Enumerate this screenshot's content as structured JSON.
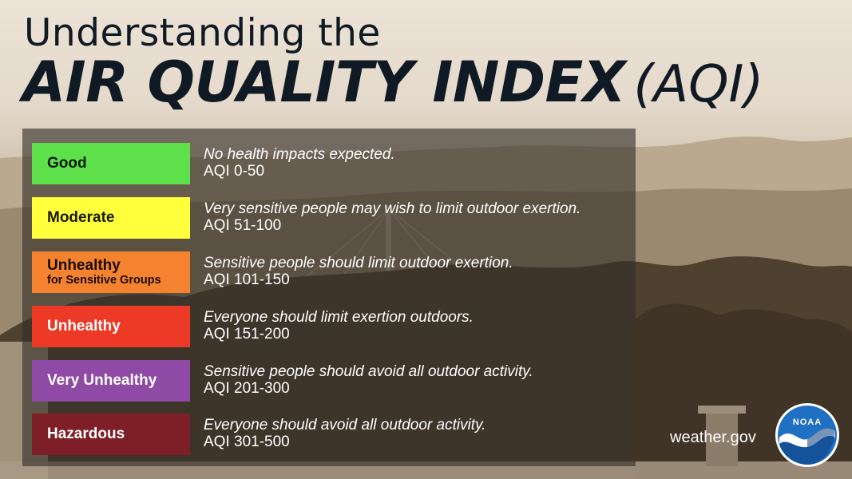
{
  "title": {
    "line1": "Understanding the",
    "main": "AIR QUALITY INDEX",
    "abbr": "(AQI)"
  },
  "categories": [
    {
      "label": "Good",
      "sublabel": "",
      "description": "No health impacts expected.",
      "range": "AQI 0-50",
      "color": "#5ee04a",
      "text_color": "#0b1a0b"
    },
    {
      "label": "Moderate",
      "sublabel": "",
      "description": "Very sensitive people may wish to limit outdoor exertion.",
      "range": "AQI 51-100",
      "color": "#ffff3c",
      "text_color": "#1a1a00"
    },
    {
      "label": "Unhealthy",
      "sublabel": "for Sensitive Groups",
      "description": "Sensitive people should limit outdoor exertion.",
      "range": "AQI 101-150",
      "color": "#f4822f",
      "text_color": "#1a0d00"
    },
    {
      "label": "Unhealthy",
      "sublabel": "",
      "description": "Everyone should limit exertion outdoors.",
      "range": "AQI 151-200",
      "color": "#ec3a26",
      "text_color": "#ffffff"
    },
    {
      "label": "Very Unhealthy",
      "sublabel": "",
      "description": "Sensitive people should avoid all outdoor activity.",
      "range": "AQI 201-300",
      "color": "#8f4aa6",
      "text_color": "#ffffff"
    },
    {
      "label": "Hazardous",
      "sublabel": "",
      "description": "Everyone should avoid all outdoor activity.",
      "range": "AQI 301-500",
      "color": "#7e1f27",
      "text_color": "#ffffff"
    }
  ],
  "footer": {
    "site": "weather.gov",
    "logo_text": "NOAA"
  }
}
